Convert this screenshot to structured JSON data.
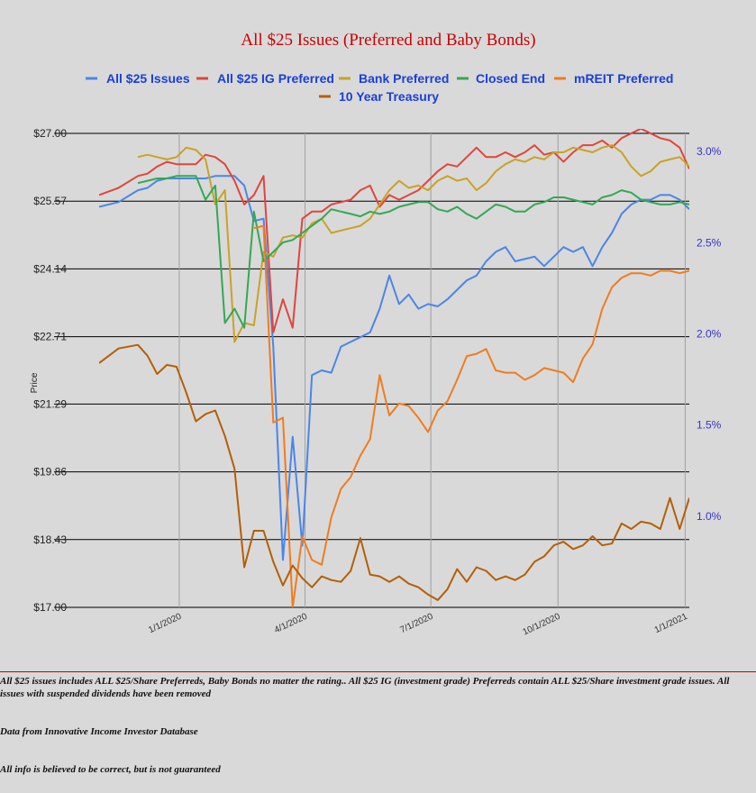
{
  "chart_data": {
    "type": "line",
    "title": "All $25 Issues (Preferred and Baby Bonds)",
    "ylabel": "Price",
    "ylim": [
      17.0,
      27.0
    ],
    "y2lim": [
      0.5,
      3.1
    ],
    "yticks_left": [
      "$27.00",
      "$25.57",
      "$24.14",
      "$22.71",
      "$21.29",
      "$19.86",
      "$18.43",
      "$17.00"
    ],
    "yticks_right": [
      "3.0%",
      "2.5%",
      "2.0%",
      "1.5%",
      "1.0%"
    ],
    "xticks": [
      "1/1/2020",
      "4/1/2020",
      "7/1/2020",
      "10/1/2020",
      "1/1/2021"
    ],
    "legend_position": "top",
    "grid": true,
    "series": [
      {
        "name": "All $25 Issues",
        "color": "#4a86e8",
        "axis": "left",
        "x": [
          "2019-11-04",
          "2019-11-18",
          "2019-12-02",
          "2019-12-09",
          "2019-12-16",
          "2019-12-23",
          "2019-12-30",
          "2020-01-06",
          "2020-01-13",
          "2020-01-20",
          "2020-01-27",
          "2020-02-03",
          "2020-02-10",
          "2020-02-17",
          "2020-02-24",
          "2020-03-02",
          "2020-03-09",
          "2020-03-16",
          "2020-03-23",
          "2020-03-30",
          "2020-04-06",
          "2020-04-13",
          "2020-04-20",
          "2020-04-27",
          "2020-05-04",
          "2020-05-11",
          "2020-05-18",
          "2020-05-25",
          "2020-06-01",
          "2020-06-08",
          "2020-06-15",
          "2020-06-22",
          "2020-06-29",
          "2020-07-06",
          "2020-07-13",
          "2020-07-20",
          "2020-07-27",
          "2020-08-03",
          "2020-08-10",
          "2020-08-17",
          "2020-08-24",
          "2020-08-31",
          "2020-09-07",
          "2020-09-14",
          "2020-09-21",
          "2020-09-28",
          "2020-10-05",
          "2020-10-12",
          "2020-10-19",
          "2020-10-26",
          "2020-11-02",
          "2020-11-09",
          "2020-11-16",
          "2020-11-23",
          "2020-11-30",
          "2020-12-07",
          "2020-12-14",
          "2020-12-21",
          "2020-12-28",
          "2021-01-04"
        ],
        "values": [
          25.45,
          25.55,
          25.8,
          25.85,
          26.0,
          26.05,
          26.05,
          26.05,
          26.05,
          26.05,
          26.1,
          26.1,
          26.1,
          25.9,
          25.15,
          25.2,
          22.5,
          18.0,
          20.6,
          18.3,
          21.9,
          22.0,
          21.95,
          22.5,
          22.6,
          22.7,
          22.8,
          23.3,
          24.0,
          23.4,
          23.6,
          23.3,
          23.4,
          23.35,
          23.5,
          23.7,
          23.9,
          24.0,
          24.3,
          24.5,
          24.6,
          24.3,
          24.35,
          24.4,
          24.2,
          24.4,
          24.6,
          24.5,
          24.6,
          24.2,
          24.6,
          24.9,
          25.3,
          25.5,
          25.6,
          25.6,
          25.7,
          25.7,
          25.6,
          25.4
        ]
      },
      {
        "name": "All $25 IG Preferred",
        "color": "#e0453b",
        "axis": "left",
        "x": [
          "2019-11-04",
          "2019-11-18",
          "2019-12-02",
          "2019-12-09",
          "2019-12-16",
          "2019-12-23",
          "2019-12-30",
          "2020-01-06",
          "2020-01-13",
          "2020-01-20",
          "2020-01-27",
          "2020-02-03",
          "2020-02-10",
          "2020-02-17",
          "2020-02-24",
          "2020-03-02",
          "2020-03-09",
          "2020-03-16",
          "2020-03-23",
          "2020-03-30",
          "2020-04-06",
          "2020-04-13",
          "2020-04-20",
          "2020-04-27",
          "2020-05-04",
          "2020-05-11",
          "2020-05-18",
          "2020-05-25",
          "2020-06-01",
          "2020-06-08",
          "2020-06-15",
          "2020-06-22",
          "2020-06-29",
          "2020-07-06",
          "2020-07-13",
          "2020-07-20",
          "2020-07-27",
          "2020-08-03",
          "2020-08-10",
          "2020-08-17",
          "2020-08-24",
          "2020-08-31",
          "2020-09-07",
          "2020-09-14",
          "2020-09-21",
          "2020-09-28",
          "2020-10-05",
          "2020-10-12",
          "2020-10-19",
          "2020-10-26",
          "2020-11-02",
          "2020-11-09",
          "2020-11-16",
          "2020-11-23",
          "2020-11-30",
          "2020-12-07",
          "2020-12-14",
          "2020-12-21",
          "2020-12-28",
          "2021-01-04"
        ],
        "values": [
          25.7,
          25.85,
          26.1,
          26.15,
          26.3,
          26.4,
          26.35,
          26.35,
          26.35,
          26.55,
          26.5,
          26.35,
          26.0,
          25.5,
          25.7,
          26.1,
          22.8,
          23.5,
          22.9,
          25.2,
          25.35,
          25.35,
          25.5,
          25.55,
          25.6,
          25.8,
          25.9,
          25.45,
          25.7,
          25.6,
          25.7,
          25.8,
          26.0,
          26.2,
          26.35,
          26.3,
          26.5,
          26.7,
          26.5,
          26.5,
          26.6,
          26.5,
          26.6,
          26.75,
          26.55,
          26.6,
          26.4,
          26.6,
          26.75,
          26.75,
          26.85,
          26.7,
          26.9,
          27.0,
          27.1,
          27.0,
          26.9,
          26.85,
          26.7,
          26.25
        ]
      },
      {
        "name": "Bank Preferred",
        "color": "#c9a227",
        "axis": "left",
        "x": [
          "2019-12-02",
          "2019-12-09",
          "2019-12-16",
          "2019-12-23",
          "2019-12-30",
          "2020-01-06",
          "2020-01-13",
          "2020-01-20",
          "2020-01-27",
          "2020-02-03",
          "2020-02-10",
          "2020-02-17",
          "2020-02-24",
          "2020-03-02",
          "2020-03-09",
          "2020-03-16",
          "2020-03-23",
          "2020-03-30",
          "2020-04-06",
          "2020-04-13",
          "2020-04-20",
          "2020-04-27",
          "2020-05-04",
          "2020-05-11",
          "2020-05-18",
          "2020-05-25",
          "2020-06-01",
          "2020-06-08",
          "2020-06-15",
          "2020-06-22",
          "2020-06-29",
          "2020-07-06",
          "2020-07-13",
          "2020-07-20",
          "2020-07-27",
          "2020-08-03",
          "2020-08-10",
          "2020-08-17",
          "2020-08-24",
          "2020-08-31",
          "2020-09-07",
          "2020-09-14",
          "2020-09-21",
          "2020-09-28",
          "2020-10-05",
          "2020-10-12",
          "2020-10-19",
          "2020-10-26",
          "2020-11-02",
          "2020-11-09",
          "2020-11-16",
          "2020-11-23",
          "2020-11-30",
          "2020-12-07",
          "2020-12-14",
          "2020-12-21",
          "2020-12-28",
          "2021-01-04"
        ],
        "values": [
          26.5,
          26.55,
          26.5,
          26.45,
          26.5,
          26.7,
          26.65,
          26.45,
          25.5,
          25.8,
          22.6,
          23.0,
          22.95,
          24.5,
          24.4,
          24.8,
          24.85,
          24.8,
          25.1,
          25.2,
          24.9,
          24.95,
          25.0,
          25.05,
          25.2,
          25.5,
          25.8,
          26.0,
          25.85,
          25.9,
          25.8,
          26.0,
          26.1,
          26.0,
          26.05,
          25.8,
          25.95,
          26.2,
          26.35,
          26.45,
          26.4,
          26.5,
          26.45,
          26.6,
          26.6,
          26.7,
          26.65,
          26.6,
          26.7,
          26.75,
          26.6,
          26.3,
          26.1,
          26.2,
          26.4,
          26.45,
          26.5,
          26.3
        ]
      },
      {
        "name": "Closed End",
        "color": "#34a853",
        "axis": "left",
        "x": [
          "2019-12-02",
          "2019-12-09",
          "2019-12-16",
          "2019-12-23",
          "2019-12-30",
          "2020-01-06",
          "2020-01-13",
          "2020-01-20",
          "2020-01-27",
          "2020-02-03",
          "2020-02-10",
          "2020-02-17",
          "2020-02-24",
          "2020-03-02",
          "2020-03-09",
          "2020-03-16",
          "2020-03-23",
          "2020-03-30",
          "2020-04-06",
          "2020-04-13",
          "2020-04-20",
          "2020-04-27",
          "2020-05-04",
          "2020-05-11",
          "2020-05-18",
          "2020-05-25",
          "2020-06-01",
          "2020-06-08",
          "2020-06-15",
          "2020-06-22",
          "2020-06-29",
          "2020-07-06",
          "2020-07-13",
          "2020-07-20",
          "2020-07-27",
          "2020-08-03",
          "2020-08-10",
          "2020-08-17",
          "2020-08-24",
          "2020-08-31",
          "2020-09-07",
          "2020-09-14",
          "2020-09-21",
          "2020-09-28",
          "2020-10-05",
          "2020-10-12",
          "2020-10-19",
          "2020-10-26",
          "2020-11-02",
          "2020-11-09",
          "2020-11-16",
          "2020-11-23",
          "2020-11-30",
          "2020-12-07",
          "2020-12-14",
          "2020-12-21",
          "2020-12-28",
          "2021-01-04"
        ],
        "values": [
          25.95,
          26.0,
          26.05,
          26.05,
          26.1,
          26.1,
          26.1,
          25.6,
          25.9,
          23.0,
          23.3,
          22.9,
          25.35,
          24.3,
          24.5,
          24.7,
          24.75,
          24.9,
          25.05,
          25.2,
          25.4,
          25.35,
          25.3,
          25.25,
          25.35,
          25.3,
          25.35,
          25.45,
          25.5,
          25.55,
          25.55,
          25.4,
          25.35,
          25.45,
          25.3,
          25.2,
          25.35,
          25.5,
          25.45,
          25.35,
          25.35,
          25.5,
          25.55,
          25.65,
          25.65,
          25.6,
          25.55,
          25.5,
          25.65,
          25.7,
          25.8,
          25.75,
          25.6,
          25.55,
          25.5,
          25.5,
          25.55,
          25.5
        ]
      },
      {
        "name": "mREIT Preferred",
        "color": "#f07c1f",
        "axis": "left",
        "x": [
          "2020-02-24",
          "2020-03-02",
          "2020-03-09",
          "2020-03-16",
          "2020-03-23",
          "2020-03-30",
          "2020-04-06",
          "2020-04-13",
          "2020-04-20",
          "2020-04-27",
          "2020-05-04",
          "2020-05-11",
          "2020-05-18",
          "2020-05-25",
          "2020-06-01",
          "2020-06-08",
          "2020-06-15",
          "2020-06-22",
          "2020-06-29",
          "2020-07-06",
          "2020-07-13",
          "2020-07-20",
          "2020-07-27",
          "2020-08-03",
          "2020-08-10",
          "2020-08-17",
          "2020-08-24",
          "2020-08-31",
          "2020-09-07",
          "2020-09-14",
          "2020-09-21",
          "2020-09-28",
          "2020-10-05",
          "2020-10-12",
          "2020-10-19",
          "2020-10-26",
          "2020-11-02",
          "2020-11-09",
          "2020-11-16",
          "2020-11-23",
          "2020-11-30",
          "2020-12-07",
          "2020-12-14",
          "2020-12-21",
          "2020-12-28",
          "2021-01-04"
        ],
        "values": [
          25.0,
          25.05,
          20.9,
          21.0,
          17.0,
          18.5,
          18.0,
          17.9,
          18.9,
          19.5,
          19.75,
          20.2,
          20.55,
          21.9,
          21.05,
          21.3,
          21.25,
          21.0,
          20.7,
          21.15,
          21.35,
          21.8,
          22.3,
          22.35,
          22.45,
          22.0,
          21.95,
          21.95,
          21.8,
          21.9,
          22.05,
          22.0,
          21.95,
          21.75,
          22.25,
          22.55,
          23.3,
          23.75,
          23.95,
          24.05,
          24.05,
          24.0,
          24.1,
          24.1,
          24.05,
          24.1
        ]
      },
      {
        "name": "10 Year Treasury",
        "color": "#b45f06",
        "axis": "right",
        "x": [
          "2019-11-04",
          "2019-11-18",
          "2019-12-02",
          "2019-12-09",
          "2019-12-16",
          "2019-12-23",
          "2019-12-30",
          "2020-01-06",
          "2020-01-13",
          "2020-01-20",
          "2020-01-27",
          "2020-02-03",
          "2020-02-10",
          "2020-02-17",
          "2020-02-24",
          "2020-03-02",
          "2020-03-09",
          "2020-03-16",
          "2020-03-23",
          "2020-03-30",
          "2020-04-06",
          "2020-04-13",
          "2020-04-20",
          "2020-04-27",
          "2020-05-04",
          "2020-05-11",
          "2020-05-18",
          "2020-05-25",
          "2020-06-01",
          "2020-06-08",
          "2020-06-15",
          "2020-06-22",
          "2020-06-29",
          "2020-07-06",
          "2020-07-13",
          "2020-07-20",
          "2020-07-27",
          "2020-08-03",
          "2020-08-10",
          "2020-08-17",
          "2020-08-24",
          "2020-08-31",
          "2020-09-07",
          "2020-09-14",
          "2020-09-21",
          "2020-09-28",
          "2020-10-05",
          "2020-10-12",
          "2020-10-19",
          "2020-10-26",
          "2020-11-02",
          "2020-11-09",
          "2020-11-16",
          "2020-11-23",
          "2020-11-30",
          "2020-12-07",
          "2020-12-14",
          "2020-12-21",
          "2020-12-28",
          "2021-01-04"
        ],
        "values": [
          1.84,
          1.92,
          1.94,
          1.88,
          1.78,
          1.83,
          1.82,
          1.68,
          1.52,
          1.56,
          1.58,
          1.44,
          1.26,
          0.72,
          0.92,
          0.92,
          0.75,
          0.62,
          0.73,
          0.66,
          0.61,
          0.67,
          0.65,
          0.64,
          0.7,
          0.88,
          0.68,
          0.67,
          0.64,
          0.67,
          0.63,
          0.61,
          0.57,
          0.54,
          0.6,
          0.71,
          0.64,
          0.72,
          0.7,
          0.65,
          0.67,
          0.65,
          0.68,
          0.75,
          0.78,
          0.84,
          0.86,
          0.82,
          0.84,
          0.89,
          0.84,
          0.85,
          0.96,
          0.93,
          0.97,
          0.96,
          0.93,
          1.1,
          0.93,
          1.1
        ]
      }
    ]
  },
  "notes": {
    "line1": "All $25 issues includes ALL $25/Share Preferreds, Baby Bonds no matter the rating..  All $25 IG (investment grade) Preferreds contain ALL $25/Share investment grade issues.  All issues with suspended dividends have been removed",
    "line2": "Data from Innovative Income Investor Database",
    "line3": "All info is believed to be correct, but is not guaranteed"
  }
}
